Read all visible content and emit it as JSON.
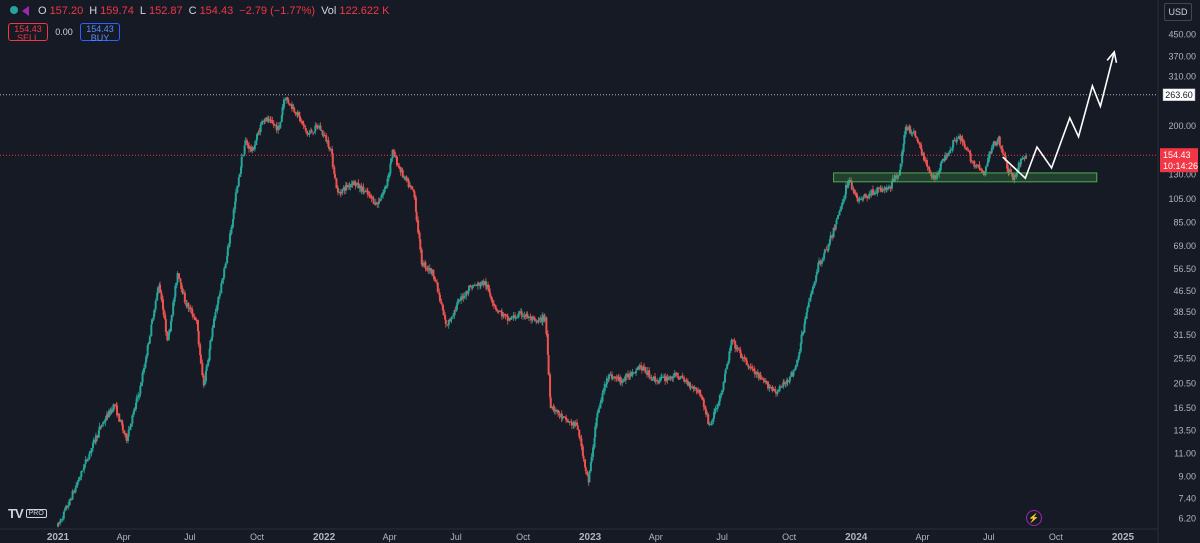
{
  "ohlc": {
    "open_label": "O",
    "open": "157.20",
    "high_label": "H",
    "high": "159.74",
    "low_label": "L",
    "low": "152.87",
    "close_label": "C",
    "close": "154.43",
    "change": "−2.79 (−1.77%)",
    "vol_label": "Vol",
    "volume": "122.622 K"
  },
  "trade": {
    "sell_price": "154.43",
    "sell_label": "SELL",
    "spread": "0.00",
    "buy_price": "154.43",
    "buy_label": "BUY"
  },
  "currency": "USD",
  "logo": {
    "mark": "TV",
    "badge": "PRO"
  },
  "chart_data": {
    "type": "candlestick",
    "scale": "log",
    "grid": false,
    "colors": {
      "up": "#26a69a",
      "down": "#ef5350",
      "background": "#161a25",
      "zone": "#4caf50",
      "projection": "#ffffff"
    },
    "x_ticks": [
      "2021",
      "Apr",
      "Jul",
      "Oct",
      "2022",
      "Apr",
      "Jul",
      "Oct",
      "2023",
      "Apr",
      "Jul",
      "Oct",
      "2024",
      "Apr",
      "Jul",
      "Oct",
      "2025"
    ],
    "y_ticks": [
      "450.00",
      "370.00",
      "310.00",
      "200.00",
      "130.00",
      "105.00",
      "85.00",
      "69.00",
      "56.50",
      "46.50",
      "38.50",
      "31.50",
      "25.50",
      "20.50",
      "16.50",
      "13.50",
      "11.00",
      "9.00",
      "7.40",
      "6.20"
    ],
    "y_range": [
      5.7,
      520
    ],
    "resistance_level": {
      "value": 263.6,
      "label": "263.60"
    },
    "current_price": {
      "value": 154.43,
      "label": "154.43",
      "countdown": "10:14:26"
    },
    "support_zone": {
      "from": "2023-12-01",
      "to": "2024-11-26",
      "low": 122,
      "high": 132
    },
    "projection_path": [
      [
        "2024-07-20",
        152
      ],
      [
        "2024-08-20",
        126
      ],
      [
        "2024-09-05",
        166
      ],
      [
        "2024-09-25",
        138
      ],
      [
        "2024-10-20",
        215
      ],
      [
        "2024-11-01",
        182
      ],
      [
        "2024-11-20",
        285
      ],
      [
        "2024-12-01",
        238
      ],
      [
        "2024-12-20",
        385
      ]
    ],
    "price_path": [
      [
        "2021-01-01",
        5.8
      ],
      [
        "2021-01-20",
        7.5
      ],
      [
        "2021-02-10",
        10.5
      ],
      [
        "2021-03-01",
        14
      ],
      [
        "2021-03-20",
        17
      ],
      [
        "2021-04-05",
        12.5
      ],
      [
        "2021-04-25",
        20
      ],
      [
        "2021-05-10",
        35
      ],
      [
        "2021-05-20",
        50
      ],
      [
        "2021-06-01",
        30
      ],
      [
        "2021-06-15",
        55
      ],
      [
        "2021-06-25",
        42
      ],
      [
        "2021-07-10",
        36
      ],
      [
        "2021-07-20",
        20
      ],
      [
        "2021-08-05",
        38
      ],
      [
        "2021-08-20",
        60
      ],
      [
        "2021-09-05",
        120
      ],
      [
        "2021-09-15",
        175
      ],
      [
        "2021-09-25",
        160
      ],
      [
        "2021-10-10",
        215
      ],
      [
        "2021-11-01",
        195
      ],
      [
        "2021-11-08",
        260
      ],
      [
        "2021-11-25",
        225
      ],
      [
        "2021-12-10",
        185
      ],
      [
        "2021-12-25",
        200
      ],
      [
        "2022-01-10",
        165
      ],
      [
        "2022-01-20",
        110
      ],
      [
        "2022-02-10",
        122
      ],
      [
        "2022-03-01",
        110
      ],
      [
        "2022-03-15",
        100
      ],
      [
        "2022-03-28",
        118
      ],
      [
        "2022-04-05",
        160
      ],
      [
        "2022-04-20",
        128
      ],
      [
        "2022-05-05",
        110
      ],
      [
        "2022-05-15",
        60
      ],
      [
        "2022-06-01",
        54
      ],
      [
        "2022-06-18",
        34
      ],
      [
        "2022-07-05",
        42
      ],
      [
        "2022-07-20",
        48
      ],
      [
        "2022-08-10",
        50
      ],
      [
        "2022-08-25",
        40
      ],
      [
        "2022-09-10",
        36
      ],
      [
        "2022-10-01",
        38
      ],
      [
        "2022-10-20",
        35
      ],
      [
        "2022-11-01",
        37
      ],
      [
        "2022-11-08",
        17
      ],
      [
        "2022-11-25",
        15
      ],
      [
        "2022-12-15",
        14
      ],
      [
        "2022-12-30",
        8.5
      ],
      [
        "2023-01-10",
        15
      ],
      [
        "2023-01-25",
        22
      ],
      [
        "2023-02-15",
        21
      ],
      [
        "2023-03-10",
        24
      ],
      [
        "2023-04-01",
        21
      ],
      [
        "2023-05-01",
        22
      ],
      [
        "2023-06-01",
        19
      ],
      [
        "2023-06-15",
        14
      ],
      [
        "2023-07-01",
        19
      ],
      [
        "2023-07-15",
        30
      ],
      [
        "2023-08-01",
        25
      ],
      [
        "2023-08-25",
        21
      ],
      [
        "2023-09-15",
        19
      ],
      [
        "2023-10-10",
        23
      ],
      [
        "2023-10-25",
        38
      ],
      [
        "2023-11-10",
        58
      ],
      [
        "2023-11-25",
        70
      ],
      [
        "2023-12-10",
        95
      ],
      [
        "2023-12-22",
        125
      ],
      [
        "2024-01-05",
        103
      ],
      [
        "2024-01-25",
        112
      ],
      [
        "2024-02-15",
        115
      ],
      [
        "2024-03-01",
        135
      ],
      [
        "2024-03-10",
        200
      ],
      [
        "2024-03-25",
        180
      ],
      [
        "2024-04-05",
        145
      ],
      [
        "2024-04-18",
        125
      ],
      [
        "2024-05-01",
        150
      ],
      [
        "2024-05-20",
        185
      ],
      [
        "2024-06-10",
        145
      ],
      [
        "2024-06-25",
        130
      ],
      [
        "2024-07-05",
        165
      ],
      [
        "2024-07-15",
        180
      ],
      [
        "2024-07-28",
        135
      ],
      [
        "2024-08-05",
        125
      ],
      [
        "2024-08-15",
        150
      ],
      [
        "2024-08-22",
        154
      ]
    ]
  }
}
